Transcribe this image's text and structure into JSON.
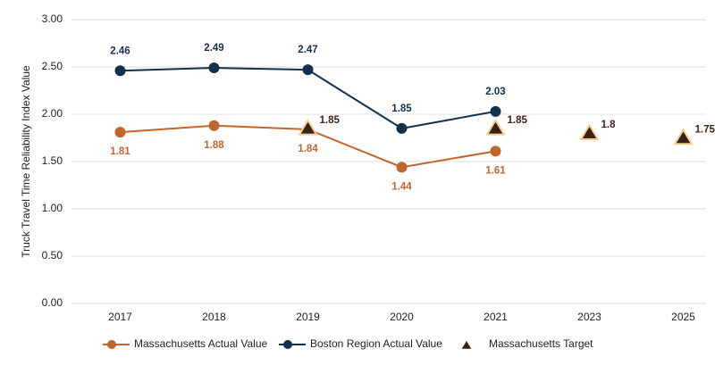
{
  "chart_data": {
    "type": "line",
    "y_label": "Truck Travel Time Reliability Index Value",
    "categories": [
      "2017",
      "2018",
      "2019",
      "2020",
      "2021",
      "2023",
      "2025"
    ],
    "series": [
      {
        "name": "Massachusetts Actual Value",
        "type": "line",
        "color": "#c1652b",
        "values": [
          1.81,
          1.88,
          1.84,
          1.44,
          1.61,
          null,
          null
        ]
      },
      {
        "name": "Boston Region Actual Value",
        "type": "line",
        "color": "#14304f",
        "values": [
          2.46,
          2.49,
          2.47,
          1.85,
          2.03,
          null,
          null
        ]
      },
      {
        "name": "Massachusetts Target",
        "type": "scatter",
        "color": "#3a2214",
        "values": [
          null,
          null,
          1.85,
          null,
          1.85,
          1.8,
          1.75
        ]
      }
    ],
    "ylim": [
      0,
      3
    ],
    "yticks": [
      {
        "value": 0,
        "label": "0.00"
      },
      {
        "value": 0.5,
        "label": "0.50"
      },
      {
        "value": 1,
        "label": "1.00"
      },
      {
        "value": 1.5,
        "label": "1.50"
      },
      {
        "value": 2,
        "label": "2.00"
      },
      {
        "value": 2.5,
        "label": "2.50"
      },
      {
        "value": 3,
        "label": "3.00"
      }
    ],
    "grid": true
  }
}
